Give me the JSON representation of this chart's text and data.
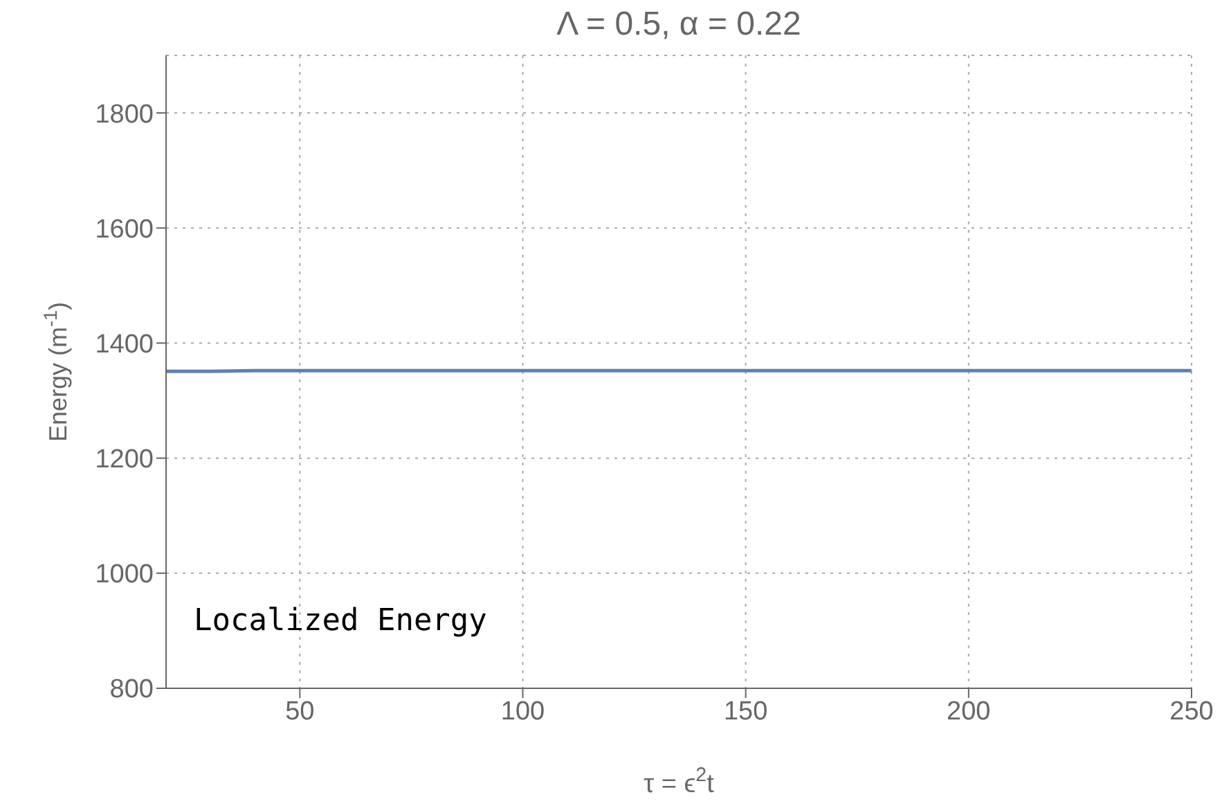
{
  "chart_data": {
    "type": "line",
    "title": "Λ = 0.5, α = 0.22",
    "xlabel": "τ = ϵ$^{2}$t",
    "ylabel": "Energy (m$^{-1}$)",
    "x": [
      20,
      30,
      40,
      50,
      60,
      70,
      80,
      90,
      100,
      110,
      120,
      130,
      140,
      150,
      160,
      170,
      180,
      190,
      200,
      210,
      220,
      230,
      240,
      250
    ],
    "series": [
      {
        "color": "#5e81b5",
        "values": [
          1351,
          1351,
          1352,
          1352,
          1352,
          1352,
          1352,
          1352,
          1352,
          1352,
          1352,
          1352,
          1352,
          1352,
          1352,
          1352,
          1352,
          1352,
          1352,
          1352,
          1352,
          1352,
          1352,
          1352
        ]
      }
    ],
    "xlim": [
      20,
      250
    ],
    "xticks": [
      50,
      100,
      150,
      200,
      250
    ],
    "ylim": [
      800,
      1900
    ],
    "yticks": [
      800,
      1000,
      1200,
      1400,
      1600,
      1800
    ],
    "grid": true,
    "marker": "none",
    "line_style": "solid",
    "annotations": [
      "Localized Energy"
    ]
  }
}
